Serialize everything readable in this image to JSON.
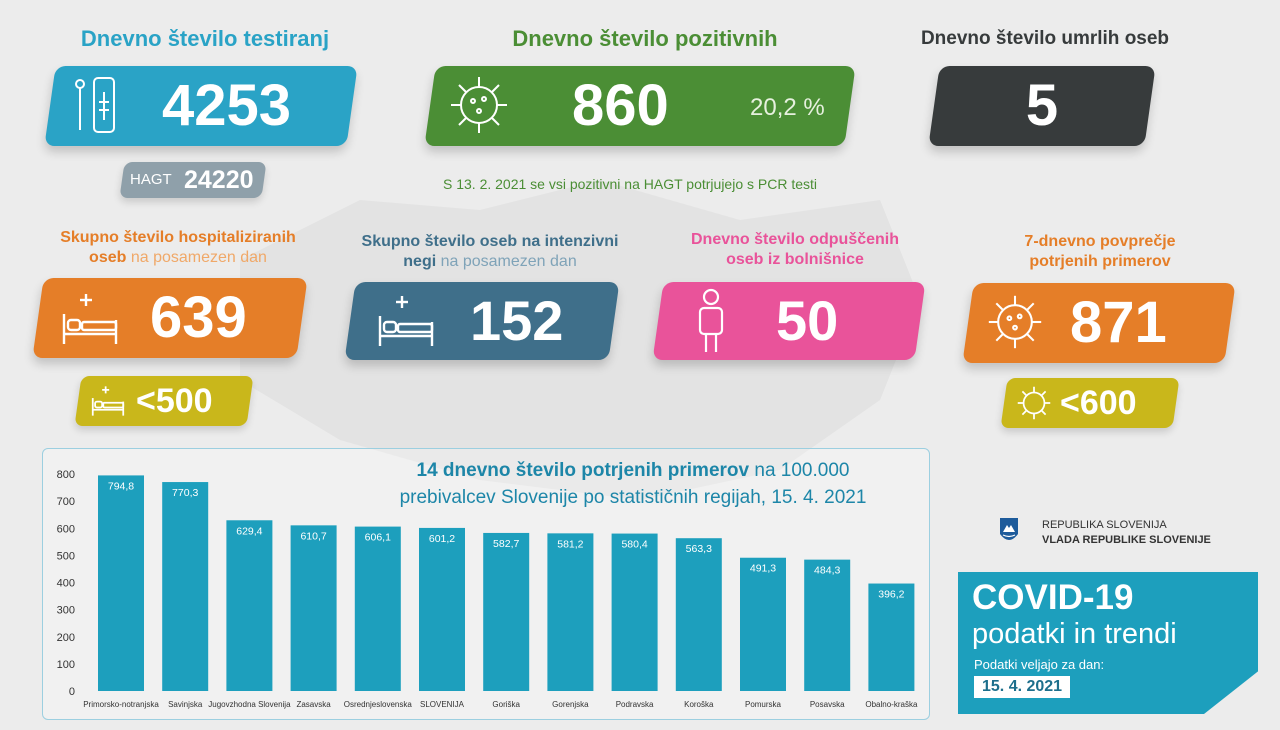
{
  "testing": {
    "heading": "Dnevno število testiranj",
    "value": "4253",
    "hagt_label": "HAGT",
    "hagt_value": "24220"
  },
  "positive": {
    "heading": "Dnevno število pozitivnih",
    "value": "860",
    "percent": "20,2 %",
    "note": "S 13. 2. 2021 se vsi pozitivni na HAGT potrjujejo s PCR testi"
  },
  "deaths": {
    "heading": "Dnevno število umrlih oseb",
    "value": "5"
  },
  "hospitalized": {
    "heading_bold": "Skupno število hospitaliziranih",
    "heading_bold2": "oseb",
    "heading_light": " na posamezen dan",
    "value": "639",
    "threshold": "<500"
  },
  "icu": {
    "heading_bold": "Skupno število oseb na intenzivni",
    "heading_bold2": "negi",
    "heading_light": " na posamezen dan",
    "value": "152"
  },
  "discharged": {
    "heading_line1": "Dnevno število odpuščenih",
    "heading_line2": "oseb iz bolnišnice",
    "value": "50"
  },
  "avg7": {
    "heading_line1": "7-dnevno povprečje",
    "heading_line2": "potrjenih primerov",
    "value": "871",
    "threshold": "<600"
  },
  "chart_title": {
    "bold": "14 dnevno število potrjenih primerov",
    "light": " na 100.000",
    "line2": "prebivalcev Slovenije po statističnih regijah, 15. 4. 2021"
  },
  "branding": {
    "line1": "REPUBLIKA SLOVENIJA",
    "line2": "VLADA REPUBLIKE SLOVENIJE"
  },
  "covid_box": {
    "title": "COVID-19",
    "subtitle": "podatki in trendi",
    "valid_label": "Podatki veljajo za dan:",
    "date": "15. 4. 2021"
  },
  "colors": {
    "blue": "#2aa3c6",
    "green": "#4b8e35",
    "dark": "#373b3c",
    "orange": "#e57e28",
    "steel": "#3f6f8a",
    "pink": "#e9539a",
    "mustard": "#c9b71b",
    "bar": "#1d9fbd",
    "grey_card": "#8fa0aa"
  },
  "chart_data": {
    "type": "bar",
    "categories": [
      "Primorsko-notranjska",
      "Savinjska",
      "Jugovzhodna Slovenija",
      "Zasavska",
      "Osrednjeslovenska",
      "SLOVENIJA",
      "Goriška",
      "Gorenjska",
      "Podravska",
      "Koroška",
      "Pomurska",
      "Posavska",
      "Obalno-kraška"
    ],
    "values": [
      794.8,
      770.3,
      629.4,
      610.7,
      606.1,
      601.2,
      582.7,
      581.2,
      580.4,
      563.3,
      491.3,
      484.3,
      396.2
    ],
    "value_labels": [
      "794,8",
      "770,3",
      "629,4",
      "610,7",
      "606,1",
      "601,2",
      "582,7",
      "581,2",
      "580,4",
      "563,3",
      "491,3",
      "484,3",
      "396,2"
    ],
    "yticks": [
      "0",
      "100",
      "200",
      "300",
      "400",
      "500",
      "600",
      "700",
      "800"
    ],
    "ylim": [
      0,
      800
    ],
    "grid": false
  }
}
